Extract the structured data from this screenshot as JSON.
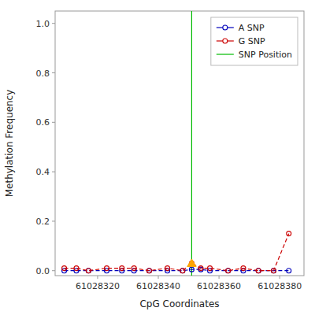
{
  "chart_data": {
    "type": "line",
    "xlabel": "CpG Coordinates",
    "ylabel": "Methylation Frequency",
    "x": [
      61028309,
      61028313,
      61028317,
      61028323,
      61028328,
      61028332,
      61028337,
      61028343,
      61028348,
      61028351,
      61028354,
      61028357,
      61028363,
      61028368,
      61028373,
      61028378,
      61028383
    ],
    "series": [
      {
        "name": "A SNP",
        "color": "#0000bb",
        "marker": "circle",
        "line_style": "dashed",
        "values": [
          0.0,
          0.0,
          0.0,
          0.0,
          0.0,
          0.0,
          0.0,
          0.0,
          0.0,
          0.005,
          0.005,
          0.0,
          0.0,
          0.0,
          0.0,
          0.0,
          0.0
        ]
      },
      {
        "name": "G SNP",
        "color": "#cc0000",
        "marker": "circle",
        "line_style": "dashed",
        "values": [
          0.01,
          0.01,
          0.0,
          0.01,
          0.01,
          0.01,
          0.0,
          0.01,
          0.0,
          0.03,
          0.01,
          0.01,
          0.0,
          0.01,
          0.0,
          0.0,
          0.15
        ]
      }
    ],
    "snp_line": {
      "name": "SNP Position",
      "x": 61028351,
      "color": "#00bb00"
    },
    "snp_marker": {
      "x": 61028351,
      "y": 0.028,
      "color": "#ffa500",
      "marker": "triangle"
    },
    "xlim": [
      61028306,
      61028388
    ],
    "ylim": [
      -0.02,
      1.05
    ],
    "xticks": [
      61028320,
      61028340,
      61028360,
      61028380
    ],
    "yticks": [
      {
        "value": 0.0,
        "label": "0.0"
      },
      0.2,
      0.4,
      0.6,
      0.8,
      {
        "value": 1.0,
        "label": "1.0"
      }
    ],
    "grid": false,
    "legend": "upper right"
  }
}
